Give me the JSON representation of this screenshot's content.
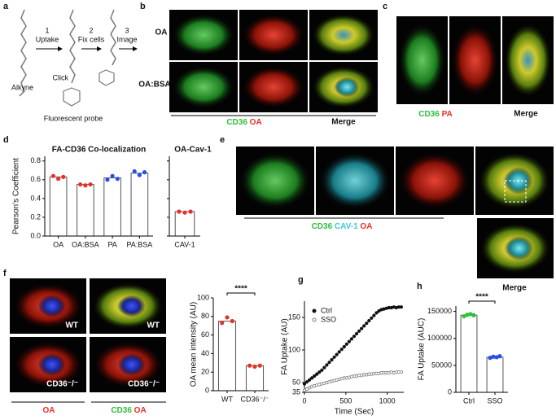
{
  "letters": [
    "a",
    "b",
    "c",
    "d",
    "e",
    "f",
    "g",
    "h"
  ],
  "panel_a": {
    "steps": [
      {
        "num": "1",
        "text": "Uptake"
      },
      {
        "num": "2",
        "text": "Fix cells"
      },
      {
        "num": "3",
        "text": "Image"
      }
    ],
    "click": "Click",
    "alkyne": "Alkyne",
    "probe": "Fluorescent probe"
  },
  "panel_b": {
    "rows": [
      "OA",
      "OA:BSA"
    ],
    "legend": [
      "CD36",
      "OA"
    ],
    "merge": "Merge"
  },
  "panel_c": {
    "legend": [
      "CD36",
      "PA"
    ],
    "merge": "Merge"
  },
  "panel_e": {
    "legend": [
      "CD36",
      "CAV-1",
      "OA"
    ],
    "merge": "Merge"
  },
  "panel_f": {
    "tags": [
      "WT",
      "WT",
      "CD36⁻/⁻",
      "CD36⁻/⁻"
    ],
    "legend_left": [
      "OA"
    ],
    "legend_right": [
      "CD36",
      "OA"
    ]
  },
  "chart_data": [
    {
      "type": "bar",
      "title": "FA-CD36 Co-localization",
      "ylabel": "Pearson's Coefficient",
      "categories": [
        "OA",
        "OA:BSA",
        "PA",
        "PA:BSA"
      ],
      "values": [
        0.63,
        0.55,
        0.62,
        0.67
      ],
      "points": [
        [
          0.64,
          0.61,
          0.63
        ],
        [
          0.55,
          0.54,
          0.55
        ],
        [
          0.6,
          0.64,
          0.61
        ],
        [
          0.69,
          0.65,
          0.68
        ]
      ],
      "point_colors": [
        "#e8302a",
        "#e8302a",
        "#2a4ee8",
        "#2a4ee8"
      ],
      "ylim": [
        0,
        0.85
      ],
      "yticks": [
        {
          "value": 0,
          "label": "0.0"
        },
        0.2,
        0.4,
        0.6,
        0.8
      ]
    },
    {
      "type": "bar",
      "title": "OA-Cav-1",
      "categories": [
        "CAV-1"
      ],
      "values": [
        0.26
      ],
      "points": [
        [
          0.26,
          0.25,
          0.26
        ]
      ],
      "point_colors": [
        "#e8302a"
      ],
      "ylim": [
        0,
        0.85
      ],
      "yticks": [
        0,
        0.2,
        0.4,
        0.6,
        0.8
      ]
    },
    {
      "type": "bar",
      "ylabel": "OA mean intensity (AU)",
      "categories": [
        "WT",
        "CD36⁻/⁻"
      ],
      "values": [
        75,
        27
      ],
      "points": [
        [
          73,
          79,
          75
        ],
        [
          27,
          26,
          27
        ]
      ],
      "point_colors": [
        "#e8302a",
        "#e8302a"
      ],
      "ylim": [
        0,
        100
      ],
      "yticks": [
        0,
        20,
        40,
        60,
        80,
        100
      ],
      "annotation": "****"
    },
    {
      "type": "scatter",
      "xlabel": "Time (Sec)",
      "ylabel": "FA Uptake (AU)",
      "x": [
        0,
        30,
        60,
        90,
        120,
        150,
        180,
        210,
        240,
        270,
        300,
        330,
        360,
        390,
        420,
        450,
        480,
        510,
        540,
        570,
        600,
        630,
        660,
        690,
        720,
        750,
        780,
        810,
        840,
        870,
        900,
        930,
        960,
        990,
        1020,
        1050,
        1080,
        1110,
        1140,
        1170
      ],
      "series": [
        {
          "name": "Ctrl",
          "color": "#111111",
          "marker": "filled",
          "values": [
            48,
            51,
            54,
            57,
            60,
            63,
            66,
            69,
            73,
            77,
            81,
            85,
            89,
            93,
            97,
            101,
            105,
            109,
            113,
            117,
            121,
            125,
            129,
            133,
            137,
            141,
            145,
            149,
            153,
            157,
            160,
            162,
            163,
            164,
            165,
            165,
            166,
            165,
            166,
            166
          ]
        },
        {
          "name": "SSO",
          "color": "#777777",
          "marker": "open",
          "values": [
            38,
            40,
            42,
            44,
            45,
            46,
            47,
            48,
            49,
            50,
            51,
            52,
            53,
            54,
            55,
            56,
            57,
            57,
            58,
            59,
            60,
            60,
            61,
            61,
            62,
            62,
            63,
            63,
            64,
            64,
            64,
            65,
            65,
            65,
            65,
            66,
            65,
            66,
            66,
            66
          ]
        }
      ],
      "xlim": [
        0,
        1200
      ],
      "xticks": [
        0,
        500,
        1000
      ],
      "ylim": [
        35,
        175
      ],
      "yticks": [
        35,
        50,
        100,
        150
      ]
    },
    {
      "type": "bar",
      "ylabel": "FA Uptake (AUC)",
      "categories": [
        "Ctrl",
        "SSO"
      ],
      "values": [
        143000,
        65000
      ],
      "points": [
        [
          141000,
          144000,
          145000,
          143000
        ],
        [
          64000,
          66000,
          65000,
          67000
        ]
      ],
      "point_colors": [
        "#2fbf3a",
        "#2a4ee8"
      ],
      "ylim": [
        0,
        160000
      ],
      "yticks": [
        0,
        50000,
        100000,
        150000
      ],
      "annotation": "****"
    }
  ]
}
